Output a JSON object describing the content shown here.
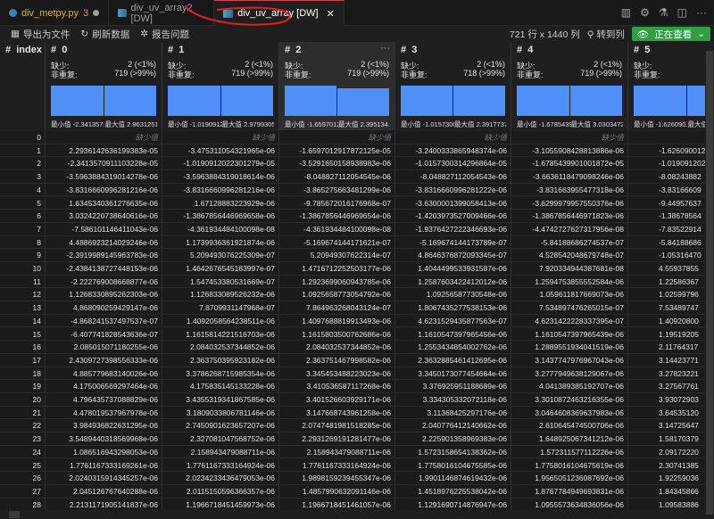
{
  "tabs": [
    {
      "label": "div_metpy.py",
      "badge": "3",
      "type": "python"
    },
    {
      "label": "div_uv_array2 [DW]",
      "type": "dataview"
    },
    {
      "label": "div_uv_array [DW]",
      "type": "dataview",
      "active": true
    }
  ],
  "tab_actions": [
    "split-preview-icon",
    "gear-icon",
    "flask-icon",
    "split-editor-icon",
    "more-icon"
  ],
  "toolbar": {
    "export": "导出为文件",
    "refresh": "刷新数据",
    "report": "报告问题",
    "shape": "721 行 x 1440 列",
    "goto": "转到列",
    "viewing": "正在查看"
  },
  "index_header": "index",
  "labels": {
    "missing": "缺少:",
    "distinct": "非重复:",
    "min": "最小值",
    "max": "最大值",
    "missing_cell": "缺少值"
  },
  "colors": {
    "accent": "#2ea043",
    "bar": "#4e8ff8",
    "annotation": "#e02020"
  },
  "columns": [
    {
      "name": "0",
      "missing": "2 (<1%)",
      "distinct": "719 (>99%)",
      "min": "-2.341357...",
      "max": "2.9631251...",
      "hist": [
        1,
        1
      ]
    },
    {
      "name": "1",
      "missing": "2 (<1%)",
      "distinct": "719 (>99%)",
      "min": "-1.0190912...",
      "max": "2.9799305...",
      "hist": [
        1,
        1
      ]
    },
    {
      "name": "2",
      "missing": "2 (<1%)",
      "distinct": "719 (>99%)",
      "min": "-1.6597012...",
      "max": "2.395134...",
      "hist": [
        1,
        0.9
      ]
    },
    {
      "name": "3",
      "missing": "2 (<1%)",
      "distinct": "718 (>99%)",
      "min": "-1.0157300...",
      "max": "2.3917737...",
      "hist": [
        1,
        1
      ]
    },
    {
      "name": "4",
      "missing": "2 (<1%)",
      "distinct": "719 (>99%)",
      "min": "-1.6785439...",
      "max": "3.0303472...",
      "hist": [
        1,
        1
      ]
    },
    {
      "name": "5",
      "missing": "",
      "distinct": "",
      "min": "-1.626090...",
      "max": "",
      "hist": [
        1,
        1
      ]
    }
  ],
  "rows": [
    [
      "0",
      null,
      null,
      null,
      null,
      null,
      ""
    ],
    [
      "1",
      "2.2936142636199383e-05",
      "-3.475311054321965e-06",
      "-1.6597012917872125e-05",
      "-3.2400333865948374e-06",
      "-3.1055908428813886e-06",
      "-1.626090012"
    ],
    [
      "2",
      "-2.3413570911103228e-05",
      "-1.0190912022301279e-05",
      "-3.5291650158938983e-06",
      "-1.0157300314296864e-05",
      "-1.6785439901001872e-05",
      "-1.019091202"
    ],
    [
      "3",
      "-3.5963884319014278e-06",
      "-3.5963884319018614e-06",
      "-8.048827112054545e-06",
      "-8.048827112054543e-06",
      "-3.6636118479098246e-06",
      "-8.08243882"
    ],
    [
      "4",
      "-3.8316660996281216e-06",
      "-3.8316660996281216e-06",
      "-3.865275663481299e-06",
      "-3.8316660996281222e-06",
      "-3.831663955477318e-06",
      "-3.83166609"
    ],
    [
      "5",
      "1.6345340361276635e-06",
      "1.67128883223929e-06",
      "-9.785672016176968e-07",
      "-3.6300001399058413e-06",
      "-3.6299979957550376e-06",
      "-9.44957637"
    ],
    [
      "6",
      "3.0324220738640616e-06",
      "-1.3867856446969658e-06",
      "-1.3867856446969654e-06",
      "-1.4203973527009466e-06",
      "-1.3867856446971823e-06",
      "-1.38678564"
    ],
    [
      "7",
      "-7.586101146411043e-06",
      "-4.361934484100098e-08",
      "-4.361934484100098e-08",
      "-1.9376427222346693e-06",
      "-4.4742727627317956e-08",
      "-7.83522914"
    ],
    [
      "8",
      "4.4886923214029246e-06",
      "1.1739936361921874e-06",
      "-5.169674144171621e-07",
      "-5.169674144173789e-07",
      "-5.84188686274537e-07",
      "-5.84188686"
    ],
    [
      "9",
      "-2.3919989145963783e-06",
      "5.209493076225309e-07",
      "5.20949307622314e-07",
      "4.8646376872093345e-07",
      "4.528542048679748e-07",
      "-1.05316470"
    ],
    [
      "10",
      "-2.4384138727448153e-06",
      "1.4642676545183997e-07",
      "1.4716712252503177e-06",
      "1.4044499533931587e-06",
      "7.920334944387681e-08",
      "4.55937855"
    ],
    [
      "11",
      "-2.222769008668877e-06",
      "1.547453380531669e-07",
      "1.2923699060943785e-06",
      "1.2587603422412012e-06",
      "1.2594753855552584e-06",
      "1.22586367"
    ],
    [
      "12",
      "1.1268330895262303e-06",
      "1.126833089526232e-06",
      "1.0925658773054792e-06",
      "1.09256587730548e-06",
      "1.059611817669073e-06",
      "1.02599796"
    ],
    [
      "13",
      "4.868090259429147e-06",
      "7.8709931147968e-07",
      "7.864963268043124e-07",
      "1.8067435277538153e-06",
      "7.534897476265015e-07",
      "7.53489747"
    ],
    [
      "14",
      "-4.868241537497537e-07",
      "1.4092058564238511e-06",
      "1.4097688819913493e-06",
      "4.6231529435877563e-07",
      "4.6231422228337395e-07",
      "1.40920800"
    ],
    [
      "15",
      "-6.407741828543636e-07",
      "1.1615814221516703e-06",
      "1.1615803500762686e-06",
      "1.1610547397965456e-06",
      "1.1610547397965439e-06",
      "1.19519205"
    ],
    [
      "16",
      "2.085015071180255e-06",
      "2.084032537344852e-06",
      "2.084032537344852e-06",
      "1.2553434854002762e-06",
      "1.2889551934041519e-06",
      "2.11764317"
    ],
    [
      "17",
      "2.4309727398556333e-06",
      "2.363750395923182e-06",
      "2.363751467998582e-06",
      "2.3632885461412695e-06",
      "3.1437747976967043e-06",
      "3.14423771"
    ],
    [
      "18",
      "4.885779683140026e-06",
      "3.3786268715985354e-06",
      "3.345453488223023e-06",
      "3.3450173077454664e-06",
      "3.2777949638129067e-06",
      "3.27823221"
    ],
    [
      "19",
      "4.175006569297464e-06",
      "4.175835145133228e-06",
      "3.410536587117268e-06",
      "3.376925951188689e-06",
      "4.041389385192707e-06",
      "3.27567761"
    ],
    [
      "20",
      "4.796435737088829e-06",
      "3.4355319341867585e-06",
      "3.401526603929171e-06",
      "3.334305332072118e-06",
      "3.3010872463216355e-06",
      "3.93072903"
    ],
    [
      "21",
      "4.478019537967978e-06",
      "3.1809033806781146e-06",
      "3.147668743961258e-06",
      "3.11368425297176e-06",
      "3.0464608369637983e-06",
      "3.64535120"
    ],
    [
      "22",
      "3.984936822631295e-06",
      "2.7450901623657207e-06",
      "2.0747481981518285e-06",
      "2.040776412140662e-06",
      "2.610645474500706e-06",
      "3.14725647"
    ],
    [
      "23",
      "3.5489440318569968e-06",
      "2.327081047568752e-06",
      "2.2931269191281477e-06",
      "2.225901358969383e-06",
      "1.648925067341212e-06",
      "1.58170379"
    ],
    [
      "24",
      "1.086516943298053e-06",
      "2.158943479088711e-06",
      "2.158943479088711e-06",
      "1.5723158654138362e-06",
      "1.572311577112226e-06",
      "2.09172220"
    ],
    [
      "25",
      "1.7761167333169261e-06",
      "1.7761167333164924e-06",
      "1.7761167333164924e-06",
      "1.7758016104675585e-06",
      "1.7758016104675619e-06",
      "2.30741385"
    ],
    [
      "26",
      "2.0240315914345257e-06",
      "2.0234233436479053e-06",
      "1.9898159239455347e-06",
      "1.9901146874619432e-06",
      "1.9565051236087692e-06",
      "1.92259036"
    ],
    [
      "27",
      "2.045126767640288e-06",
      "2.0115150596366357e-06",
      "1.4857990632091146e-06",
      "1.4518976225538042e-06",
      "1.8767784949693831e-06",
      "1.84345866"
    ],
    [
      "28",
      "2.2131171905141837e-06",
      "1.1966718451459973e-06",
      "1.1966718451461057e-06",
      "1.1291690714876947e-06",
      "1.0955573634836056e-06",
      "1.09583886"
    ],
    [
      "29",
      "4.5525987183265575e-07",
      "4.216481638279161e-07",
      "8.799793865628191e-07",
      "8.799793865629309e-07",
      "3.877667559018684e-07",
      "3.87766755"
    ]
  ]
}
